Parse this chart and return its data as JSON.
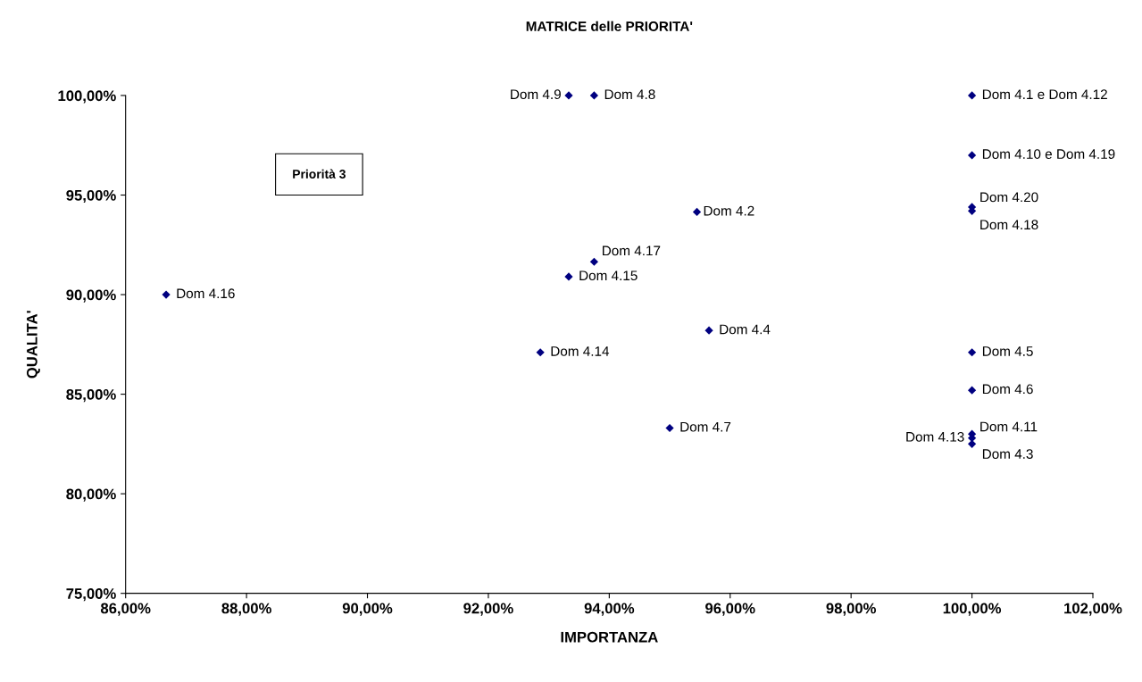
{
  "chart_data": {
    "type": "scatter",
    "title": "MATRICE delle PRIORITA'",
    "xlabel": "IMPORTANZA",
    "ylabel": "QUALITA'",
    "series": [
      {
        "color": "#000080",
        "x": [
          93.33,
          93.75,
          100,
          100,
          100,
          100,
          95.45,
          93.75,
          93.33,
          86.67,
          95.65,
          92.86,
          100,
          100,
          95.0,
          100,
          100,
          100
        ],
        "values": [
          100,
          100,
          100,
          97.0,
          94.4,
          94.2,
          94.15,
          91.65,
          90.9,
          90.0,
          88.2,
          87.1,
          87.1,
          85.2,
          83.3,
          83.0,
          82.8,
          82.5
        ]
      }
    ],
    "marker": "diamond",
    "xlim": [
      86,
      102
    ],
    "xticks": [
      {
        "value": 86,
        "label": "86,00%"
      },
      {
        "value": 88,
        "label": "88,00%"
      },
      {
        "value": 90,
        "label": "90,00%"
      },
      {
        "value": 92,
        "label": "92,00%"
      },
      {
        "value": 94,
        "label": "94,00%"
      },
      {
        "value": 96,
        "label": "96,00%"
      },
      {
        "value": 98,
        "label": "98,00%"
      },
      {
        "value": 100,
        "label": "100,00%"
      },
      {
        "value": 102,
        "label": "102,00%"
      }
    ],
    "ylim": [
      75,
      100
    ],
    "yticks": [
      {
        "value": 75,
        "label": "75,00%"
      },
      {
        "value": 80,
        "label": "80,00%"
      },
      {
        "value": 85,
        "label": "85,00%"
      },
      {
        "value": 90,
        "label": "90,00%"
      },
      {
        "value": 95,
        "label": "95,00%"
      },
      {
        "value": 100,
        "label": "100,00%"
      }
    ],
    "grid": false,
    "annotations": [
      {
        "text": "Dom 4.9",
        "x": 93.33,
        "y": 100
      },
      {
        "text": "Dom 4.8",
        "x": 93.75,
        "y": 100
      },
      {
        "text": "Dom 4.1 e Dom 4.12",
        "x": 100,
        "y": 100
      },
      {
        "text": "Dom 4.10 e Dom 4.19",
        "x": 100,
        "y": 97.0
      },
      {
        "text": "Dom 4.20",
        "x": 100,
        "y": 94.4
      },
      {
        "text": "Dom 4.18",
        "x": 100,
        "y": 94.2
      },
      {
        "text": "Dom 4.2",
        "x": 95.45,
        "y": 94.15
      },
      {
        "text": "Dom 4.17",
        "x": 93.75,
        "y": 91.65
      },
      {
        "text": "Dom 4.15",
        "x": 93.33,
        "y": 90.9
      },
      {
        "text": "Dom 4.16",
        "x": 86.67,
        "y": 90.0
      },
      {
        "text": "Dom 4.4",
        "x": 95.65,
        "y": 88.2
      },
      {
        "text": "Dom 4.14",
        "x": 92.86,
        "y": 87.1
      },
      {
        "text": "Dom 4.5",
        "x": 100,
        "y": 87.1
      },
      {
        "text": "Dom 4.6",
        "x": 100,
        "y": 85.2
      },
      {
        "text": "Dom 4.7",
        "x": 95.0,
        "y": 83.3
      },
      {
        "text": "Dom 4.11",
        "x": 100,
        "y": 83.0
      },
      {
        "text": "Dom 4.13",
        "x": 100,
        "y": 82.8
      },
      {
        "text": "Dom 4.3",
        "x": 100,
        "y": 82.5
      },
      "Priorità 3"
    ]
  }
}
